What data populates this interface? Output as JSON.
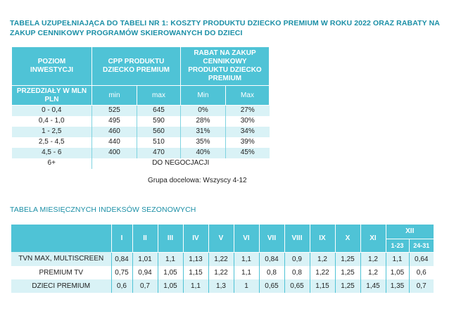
{
  "table1": {
    "title": "TABELA UZUPEŁNIAJĄCA DO TABELI NR 1: KOSZTY PRODUKTU DZIECKO PREMIUM W ROKU 2022 ORAZ RABATY NA ZAKUP CENNIKOWY PROGRAMÓW SKIEROWANYCH DO DZIECI",
    "header": {
      "investment_level": "POZIOM INWESTYCJI",
      "cpp_product": "CPP PRODUKTU DZIECKO PREMIUM",
      "discount": "RABAT NA ZAKUP CENNIKOWY PRODUKTU DZIECKO PREMIUM",
      "ranges": "PRZEDZIAŁY W MLN PLN",
      "cpp_min": "min",
      "cpp_max": "max",
      "disc_min": "Min",
      "disc_max": "Max"
    },
    "rows": [
      {
        "range": "0 - 0,4",
        "cpp_min": "525",
        "cpp_max": "645",
        "disc_min": "0%",
        "disc_max": "27%"
      },
      {
        "range": "0,4 - 1,0",
        "cpp_min": "495",
        "cpp_max": "590",
        "disc_min": "28%",
        "disc_max": "30%"
      },
      {
        "range": "1 - 2,5",
        "cpp_min": "460",
        "cpp_max": "560",
        "disc_min": "31%",
        "disc_max": "34%"
      },
      {
        "range": "2,5 - 4,5",
        "cpp_min": "440",
        "cpp_max": "510",
        "disc_min": "35%",
        "disc_max": "39%"
      },
      {
        "range": "4,5 - 6",
        "cpp_min": "400",
        "cpp_max": "470",
        "disc_min": "40%",
        "disc_max": "45%"
      }
    ],
    "last_row": {
      "range": "6+",
      "text": "DO NEGOCJACJI"
    },
    "note": "Grupa docelowa: Wszyscy 4-12"
  },
  "table2": {
    "title": "TABELA MIESIĘCZNYCH INDEKSÓW SEZONOWYCH",
    "months": [
      "I",
      "II",
      "III",
      "IV",
      "V",
      "VI",
      "VII",
      "VIII",
      "IX",
      "X",
      "XI"
    ],
    "december": "XII",
    "dec_sub": [
      "1-23",
      "24-31"
    ],
    "rows": [
      {
        "label": "TVN MAX, MULTISCREEN",
        "values": [
          "0,84",
          "1,01",
          "1,1",
          "1,13",
          "1,22",
          "1,1",
          "0,84",
          "0,9",
          "1,2",
          "1,25",
          "1,2",
          "1,1",
          "0,64"
        ]
      },
      {
        "label": "PREMIUM TV",
        "values": [
          "0,75",
          "0,94",
          "1,05",
          "1,15",
          "1,22",
          "1,1",
          "0,8",
          "0,8",
          "1,22",
          "1,25",
          "1,2",
          "1,05",
          "0,6"
        ]
      },
      {
        "label": "DZIECI PREMIUM",
        "values": [
          "0,6",
          "0,7",
          "1,05",
          "1,1",
          "1,3",
          "1",
          "0,65",
          "0,65",
          "1,15",
          "1,25",
          "1,45",
          "1,35",
          "0,7"
        ]
      }
    ]
  }
}
